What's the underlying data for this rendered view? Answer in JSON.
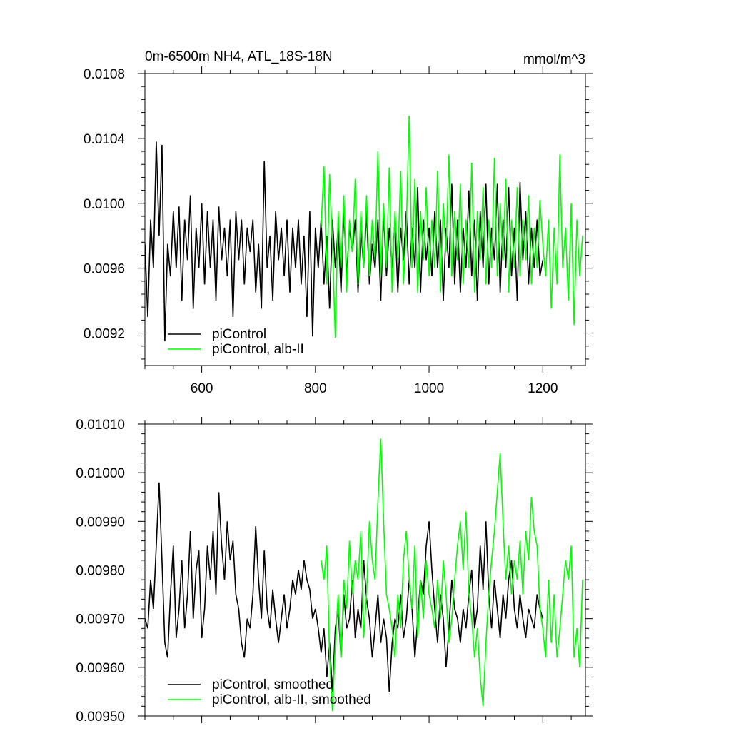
{
  "chart_data": [
    {
      "type": "line",
      "title": "0m-6500m NH4, ATL_18S-18N",
      "units": "mmol/m^3",
      "xlim": [
        500,
        1275
      ],
      "ylim": [
        0.009,
        0.0108
      ],
      "xticks": [
        600,
        800,
        1000,
        1200
      ],
      "xtick_labels": [
        "600",
        "800",
        "1000",
        "1200"
      ],
      "yticks": [
        0.0092,
        0.0096,
        0.01,
        0.0104,
        0.0108
      ],
      "ytick_labels": [
        "0.0092",
        "0.0096",
        "0.0100",
        "0.0104",
        "0.0108"
      ],
      "legend_position": "bottom-left",
      "series": [
        {
          "name": "piControl",
          "color": "#000000",
          "x": [
            500,
            505,
            510,
            515,
            520,
            525,
            530,
            535,
            540,
            545,
            550,
            555,
            560,
            565,
            570,
            575,
            580,
            585,
            590,
            595,
            600,
            605,
            610,
            615,
            620,
            625,
            630,
            635,
            640,
            645,
            650,
            655,
            660,
            665,
            670,
            675,
            680,
            685,
            690,
            695,
            700,
            705,
            710,
            715,
            720,
            725,
            730,
            735,
            740,
            745,
            750,
            755,
            760,
            765,
            770,
            775,
            780,
            785,
            790,
            795,
            800,
            805,
            810,
            815,
            820,
            825,
            830,
            835,
            840,
            845,
            850,
            855,
            860,
            865,
            870,
            875,
            880,
            885,
            890,
            895,
            900,
            905,
            910,
            915,
            920,
            925,
            930,
            935,
            940,
            945,
            950,
            955,
            960,
            965,
            970,
            975,
            980,
            985,
            990,
            995,
            1000,
            1005,
            1010,
            1015,
            1020,
            1025,
            1030,
            1035,
            1040,
            1045,
            1050,
            1055,
            1060,
            1065,
            1070,
            1075,
            1080,
            1085,
            1090,
            1095,
            1100,
            1105,
            1110,
            1115,
            1120,
            1125,
            1130,
            1135,
            1140,
            1145,
            1150,
            1155,
            1160,
            1165,
            1170,
            1175,
            1180,
            1185,
            1190,
            1195,
            1200
          ],
          "y": [
            0.00975,
            0.0093,
            0.0099,
            0.0096,
            0.01038,
            0.0098,
            0.01036,
            0.00915,
            0.00975,
            0.00955,
            0.00995,
            0.0096,
            0.00998,
            0.0094,
            0.0099,
            0.00965,
            0.01005,
            0.00935,
            0.00985,
            0.0096,
            0.01,
            0.0095,
            0.00995,
            0.0096,
            0.0099,
            0.0094,
            0.00998,
            0.00965,
            0.00985,
            0.00955,
            0.0099,
            0.0093,
            0.00995,
            0.00965,
            0.0099,
            0.0095,
            0.00985,
            0.0097,
            0.0099,
            0.00945,
            0.00975,
            0.00935,
            0.01026,
            0.0096,
            0.0098,
            0.0094,
            0.00995,
            0.00965,
            0.00985,
            0.00955,
            0.0099,
            0.00945,
            0.00985,
            0.0096,
            0.0099,
            0.0095,
            0.0098,
            0.0093,
            0.00995,
            0.00918,
            0.00985,
            0.0096,
            0.0099,
            0.0095,
            0.0098,
            0.00935,
            0.0099,
            0.0096,
            0.00985,
            0.00945,
            0.00995,
            0.00955,
            0.00985,
            0.0097,
            0.0099,
            0.00945,
            0.00985,
            0.0096,
            0.00995,
            0.0095,
            0.00975,
            0.0096,
            0.0099,
            0.0094,
            0.00995,
            0.00955,
            0.00985,
            0.0096,
            0.0099,
            0.00945,
            0.00985,
            0.00965,
            0.00995,
            0.0095,
            0.00985,
            0.0096,
            0.0101,
            0.00945,
            0.0099,
            0.00965,
            0.00985,
            0.00955,
            0.00995,
            0.0096,
            0.0099,
            0.0094,
            0.00985,
            0.0096,
            0.01012,
            0.0095,
            0.0099,
            0.00945,
            0.00985,
            0.0096,
            0.01008,
            0.00955,
            0.0099,
            0.0094,
            0.00995,
            0.0096,
            0.01012,
            0.0095,
            0.00985,
            0.00965,
            0.01012,
            0.00945,
            0.0099,
            0.0096,
            0.0101,
            0.00955,
            0.00985,
            0.0094,
            0.01013,
            0.00965,
            0.00995,
            0.0095,
            0.00985,
            0.0096,
            0.0099,
            0.00955,
            0.00965
          ]
        },
        {
          "name": "piControl, alb-II",
          "color": "#00ff00",
          "x": [
            810,
            815,
            820,
            825,
            830,
            835,
            840,
            845,
            850,
            855,
            860,
            865,
            870,
            875,
            880,
            885,
            890,
            895,
            900,
            905,
            910,
            915,
            920,
            925,
            930,
            935,
            940,
            945,
            950,
            955,
            960,
            965,
            970,
            975,
            980,
            985,
            990,
            995,
            1000,
            1005,
            1010,
            1015,
            1020,
            1025,
            1030,
            1035,
            1040,
            1045,
            1050,
            1055,
            1060,
            1065,
            1070,
            1075,
            1080,
            1085,
            1090,
            1095,
            1100,
            1105,
            1110,
            1115,
            1120,
            1125,
            1130,
            1135,
            1140,
            1145,
            1150,
            1155,
            1160,
            1165,
            1170,
            1175,
            1180,
            1185,
            1190,
            1195,
            1200,
            1205,
            1210,
            1215,
            1220,
            1225,
            1230,
            1235,
            1240,
            1245,
            1250,
            1255,
            1260,
            1265,
            1270
          ],
          "y": [
            0.00985,
            0.01023,
            0.0095,
            0.01018,
            0.00975,
            0.00917,
            0.00995,
            0.0096,
            0.01005,
            0.00945,
            0.0099,
            0.0097,
            0.01015,
            0.0095,
            0.00995,
            0.0096,
            0.01005,
            0.00955,
            0.0099,
            0.00965,
            0.01032,
            0.00955,
            0.01,
            0.0096,
            0.01022,
            0.00945,
            0.00995,
            0.00965,
            0.0102,
            0.0095,
            0.00985,
            0.01054,
            0.0096,
            0.01015,
            0.00945,
            0.00995,
            0.00965,
            0.0101,
            0.00955,
            0.0099,
            0.0096,
            0.0102,
            0.00945,
            0.01,
            0.0097,
            0.0103,
            0.00955,
            0.00995,
            0.00965,
            0.01012,
            0.0095,
            0.0099,
            0.0096,
            0.01025,
            0.00945,
            0.00995,
            0.00965,
            0.0101,
            0.0095,
            0.0099,
            0.0096,
            0.01028,
            0.00955,
            0.01,
            0.00965,
            0.01015,
            0.00945,
            0.0099,
            0.0096,
            0.0101,
            0.00955,
            0.0099,
            0.00965,
            0.01005,
            0.0095,
            0.00985,
            0.0096,
            0.01002,
            0.00975,
            0.00955,
            0.0099,
            0.00935,
            0.00985,
            0.0095,
            0.0103,
            0.0096,
            0.00985,
            0.0094,
            0.01,
            0.00925,
            0.0099,
            0.00955,
            0.0098
          ]
        }
      ]
    },
    {
      "type": "line",
      "xlim": [
        500,
        1275
      ],
      "ylim": [
        0.0095,
        0.0101
      ],
      "xticks": [
        600,
        800,
        1000,
        1200
      ],
      "yticks": [
        0.0095,
        0.0096,
        0.0097,
        0.0098,
        0.0099,
        0.01,
        0.0101
      ],
      "ytick_labels": [
        "0.00950",
        "0.00960",
        "0.00970",
        "0.00980",
        "0.00990",
        "0.01000",
        "0.01010"
      ],
      "legend_position": "bottom-left",
      "series": [
        {
          "name": "piControl, smoothed",
          "color": "#000000",
          "x": [
            500,
            505,
            510,
            515,
            520,
            525,
            530,
            535,
            540,
            545,
            550,
            555,
            560,
            565,
            570,
            575,
            580,
            585,
            590,
            595,
            600,
            605,
            610,
            615,
            620,
            625,
            630,
            635,
            640,
            645,
            650,
            655,
            660,
            665,
            670,
            675,
            680,
            685,
            690,
            695,
            700,
            705,
            710,
            715,
            720,
            725,
            730,
            735,
            740,
            745,
            750,
            755,
            760,
            765,
            770,
            775,
            780,
            785,
            790,
            795,
            800,
            805,
            810,
            815,
            820,
            825,
            830,
            835,
            840,
            845,
            850,
            855,
            860,
            865,
            870,
            875,
            880,
            885,
            890,
            895,
            900,
            905,
            910,
            915,
            920,
            925,
            930,
            935,
            940,
            945,
            950,
            955,
            960,
            965,
            970,
            975,
            980,
            985,
            990,
            995,
            1000,
            1005,
            1010,
            1015,
            1020,
            1025,
            1030,
            1035,
            1040,
            1045,
            1050,
            1055,
            1060,
            1065,
            1070,
            1075,
            1080,
            1085,
            1090,
            1095,
            1100,
            1105,
            1110,
            1115,
            1120,
            1125,
            1130,
            1135,
            1140,
            1145,
            1150,
            1155,
            1160,
            1165,
            1170,
            1175,
            1180,
            1185,
            1190,
            1195,
            1200
          ],
          "y": [
            0.0097,
            0.00968,
            0.00978,
            0.00972,
            0.00985,
            0.00998,
            0.00982,
            0.00965,
            0.00962,
            0.00975,
            0.00985,
            0.00966,
            0.00972,
            0.00982,
            0.00968,
            0.00975,
            0.00988,
            0.0097,
            0.0098,
            0.00984,
            0.00966,
            0.00972,
            0.00985,
            0.00978,
            0.00988,
            0.00975,
            0.00996,
            0.00985,
            0.00978,
            0.0099,
            0.00982,
            0.00986,
            0.00975,
            0.00972,
            0.00965,
            0.00962,
            0.0097,
            0.00968,
            0.00975,
            0.00989,
            0.00978,
            0.0097,
            0.00984,
            0.00972,
            0.00968,
            0.00976,
            0.0097,
            0.00965,
            0.0097,
            0.00975,
            0.00968,
            0.00972,
            0.00978,
            0.00975,
            0.0098,
            0.00976,
            0.00982,
            0.00978,
            0.00976,
            0.0097,
            0.00972,
            0.00968,
            0.00963,
            0.00968,
            0.00958,
            0.00965,
            0.00955,
            0.00968,
            0.00972,
            0.00962,
            0.00975,
            0.00968,
            0.0097,
            0.00978,
            0.00966,
            0.00972,
            0.00968,
            0.00982,
            0.00974,
            0.0097,
            0.00962,
            0.00968,
            0.00975,
            0.00965,
            0.0097,
            0.00966,
            0.00955,
            0.00965,
            0.0097,
            0.00968,
            0.00975,
            0.00966,
            0.0097,
            0.00978,
            0.00972,
            0.00962,
            0.0097,
            0.00978,
            0.00975,
            0.00985,
            0.0099,
            0.0098,
            0.00972,
            0.00965,
            0.00975,
            0.0097,
            0.0096,
            0.00968,
            0.00978,
            0.00972,
            0.0097,
            0.00965,
            0.00972,
            0.00968,
            0.00975,
            0.0098,
            0.00968,
            0.00972,
            0.00985,
            0.00976,
            0.0099,
            0.00975,
            0.00968,
            0.00978,
            0.00972,
            0.00966,
            0.00975,
            0.0097,
            0.00978,
            0.00982,
            0.00972,
            0.00968,
            0.00975,
            0.0097,
            0.00966,
            0.00972,
            0.0097,
            0.00968,
            0.00975,
            0.00972,
            0.0097
          ]
        },
        {
          "name": "piControl, alb-II, smoothed",
          "color": "#00ff00",
          "x": [
            810,
            815,
            820,
            825,
            830,
            835,
            840,
            845,
            850,
            855,
            860,
            865,
            870,
            875,
            880,
            885,
            890,
            895,
            900,
            905,
            910,
            915,
            920,
            925,
            930,
            935,
            940,
            945,
            950,
            955,
            960,
            965,
            970,
            975,
            980,
            985,
            990,
            995,
            1000,
            1005,
            1010,
            1015,
            1020,
            1025,
            1030,
            1035,
            1040,
            1045,
            1050,
            1055,
            1060,
            1065,
            1070,
            1075,
            1080,
            1085,
            1090,
            1095,
            1100,
            1105,
            1110,
            1115,
            1120,
            1125,
            1130,
            1135,
            1140,
            1145,
            1150,
            1155,
            1160,
            1165,
            1170,
            1175,
            1180,
            1185,
            1190,
            1195,
            1200,
            1205,
            1210,
            1215,
            1220,
            1225,
            1230,
            1235,
            1240,
            1245,
            1250,
            1255,
            1260,
            1265,
            1270
          ],
          "y": [
            0.00982,
            0.00978,
            0.00985,
            0.00962,
            0.00951,
            0.00965,
            0.00975,
            0.00962,
            0.00978,
            0.00972,
            0.00986,
            0.00975,
            0.00982,
            0.00978,
            0.00988,
            0.00966,
            0.00975,
            0.0099,
            0.00982,
            0.00978,
            0.00994,
            0.01007,
            0.0099,
            0.00975,
            0.00972,
            0.00968,
            0.00962,
            0.00975,
            0.00968,
            0.00982,
            0.00988,
            0.00978,
            0.00972,
            0.00985,
            0.00966,
            0.00978,
            0.0097,
            0.00982,
            0.00975,
            0.00972,
            0.00968,
            0.00978,
            0.0097,
            0.00982,
            0.00975,
            0.00965,
            0.0097,
            0.00978,
            0.00985,
            0.0099,
            0.0098,
            0.00992,
            0.00975,
            0.0097,
            0.00962,
            0.00968,
            0.00958,
            0.00952,
            0.00965,
            0.00975,
            0.00982,
            0.00988,
            0.00996,
            0.01004,
            0.0099,
            0.00978,
            0.00985,
            0.00975,
            0.00982,
            0.00978,
            0.00986,
            0.00975,
            0.00988,
            0.00982,
            0.00995,
            0.00988,
            0.00985,
            0.00972,
            0.00968,
            0.00962,
            0.00978,
            0.00965,
            0.00975,
            0.00962,
            0.00968,
            0.00975,
            0.00982,
            0.00978,
            0.00985,
            0.00962,
            0.00968,
            0.0096,
            0.00978
          ]
        }
      ]
    }
  ]
}
